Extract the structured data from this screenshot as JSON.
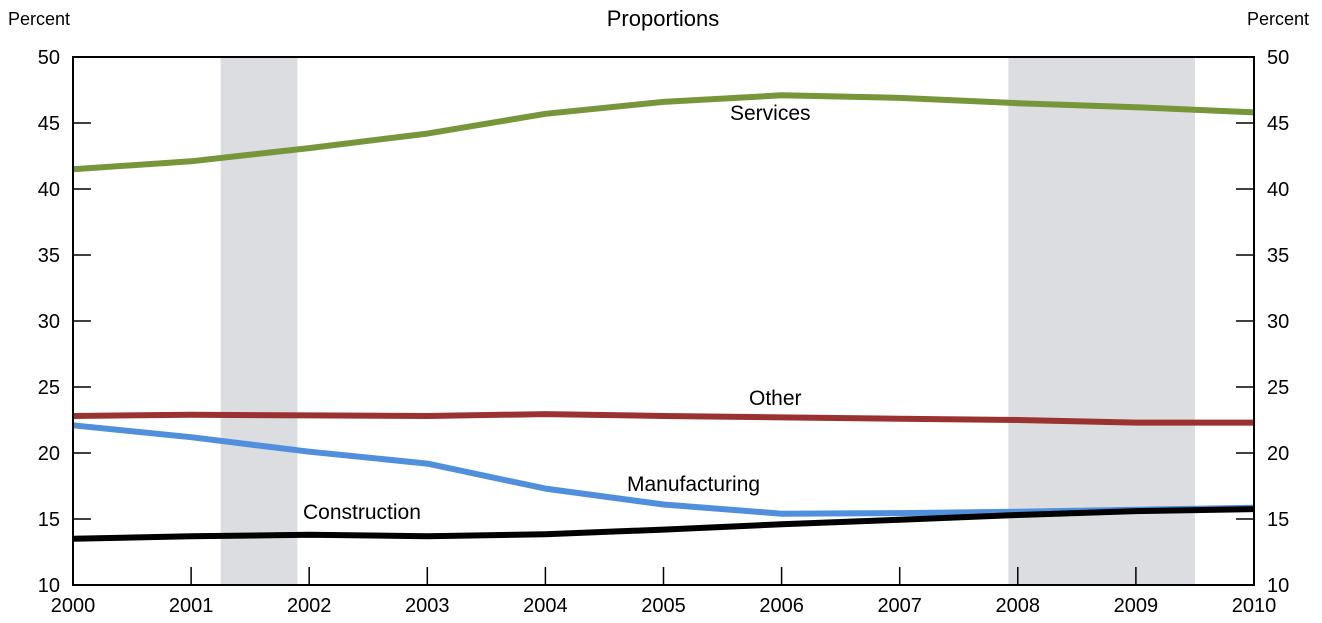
{
  "chart_data": {
    "type": "line",
    "title": "Proportions",
    "ylabel_left": "Percent",
    "ylabel_right": "Percent",
    "xlabel": "",
    "xlim": [
      2000,
      2010
    ],
    "ylim": [
      10,
      50
    ],
    "x_ticks": [
      2000,
      2001,
      2002,
      2003,
      2004,
      2005,
      2006,
      2007,
      2008,
      2009,
      2010
    ],
    "y_ticks": [
      10,
      15,
      20,
      25,
      30,
      35,
      40,
      45,
      50
    ],
    "grid": false,
    "shaded_periods": [
      {
        "start": 2001.25,
        "end": 2001.9
      },
      {
        "start": 2007.92,
        "end": 2009.5
      }
    ],
    "series": [
      {
        "name": "Services",
        "color": "#76963a",
        "x": [
          2000,
          2001,
          2002,
          2003,
          2004,
          2005,
          2006,
          2007,
          2008,
          2009,
          2010
        ],
        "y": [
          41.5,
          42.1,
          43.1,
          44.2,
          45.7,
          46.6,
          47.1,
          46.9,
          46.5,
          46.2,
          45.8
        ]
      },
      {
        "name": "Other",
        "color": "#9b3232",
        "x": [
          2000,
          2001,
          2002,
          2003,
          2004,
          2005,
          2006,
          2007,
          2008,
          2009,
          2010
        ],
        "y": [
          22.8,
          22.9,
          22.85,
          22.8,
          22.95,
          22.8,
          22.7,
          22.6,
          22.5,
          22.3,
          22.3
        ]
      },
      {
        "name": "Manufacturing",
        "color": "#4f8fdc",
        "x": [
          2000,
          2001,
          2002,
          2003,
          2004,
          2005,
          2006,
          2007,
          2008,
          2009,
          2010
        ],
        "y": [
          22.1,
          21.2,
          20.1,
          19.2,
          17.3,
          16.1,
          15.4,
          15.45,
          15.55,
          15.7,
          15.85
        ]
      },
      {
        "name": "Construction",
        "color": "#000000",
        "x": [
          2000,
          2001,
          2002,
          2003,
          2004,
          2005,
          2006,
          2007,
          2008,
          2009,
          2010
        ],
        "y": [
          13.5,
          13.7,
          13.8,
          13.7,
          13.85,
          14.2,
          14.6,
          14.95,
          15.3,
          15.6,
          15.75
        ]
      }
    ]
  }
}
